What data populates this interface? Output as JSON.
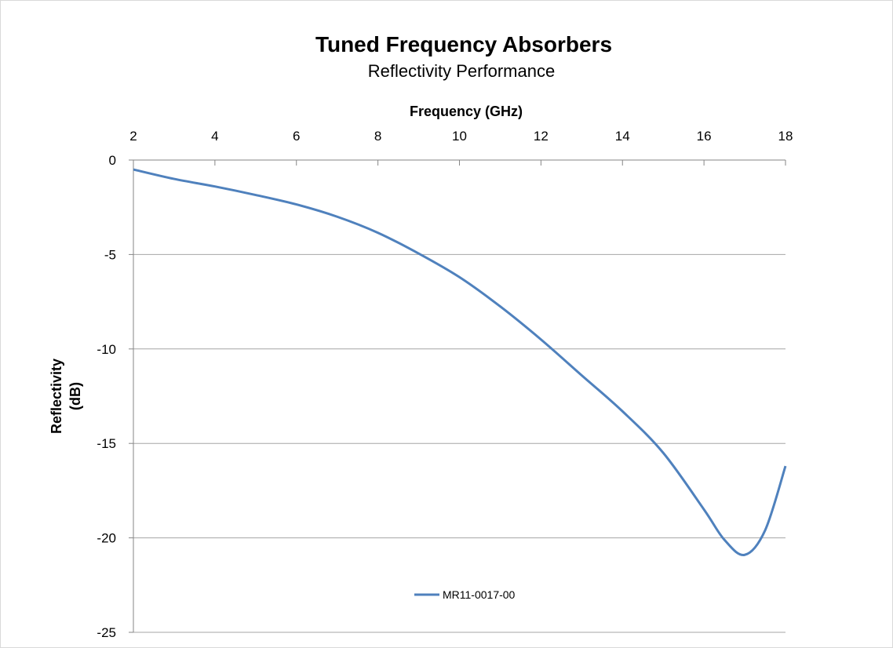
{
  "chart_data": {
    "type": "line",
    "title": "Tuned Frequency Absorbers",
    "subtitle": "Reflectivity Performance",
    "xlabel": "Frequency (GHz)",
    "ylabel_lines": [
      "Reflectivity",
      "(dB)"
    ],
    "xlim": [
      2,
      18
    ],
    "ylim": [
      -25,
      0
    ],
    "x_ticks": [
      2,
      4,
      6,
      8,
      10,
      12,
      14,
      16,
      18
    ],
    "y_ticks": [
      0,
      -5,
      -10,
      -15,
      -20,
      -25
    ],
    "x_axis_position": "top",
    "grid": "horizontal",
    "legend_position": "bottom-center",
    "series": [
      {
        "name": "MR11-0017-00",
        "color": "#4f81bd",
        "points": [
          [
            2,
            -0.5
          ],
          [
            3,
            -1.0
          ],
          [
            4,
            -1.4
          ],
          [
            5,
            -1.85
          ],
          [
            6,
            -2.35
          ],
          [
            7,
            -3.0
          ],
          [
            8,
            -3.85
          ],
          [
            9,
            -4.95
          ],
          [
            10,
            -6.2
          ],
          [
            11,
            -7.75
          ],
          [
            12,
            -9.5
          ],
          [
            13,
            -11.4
          ],
          [
            14,
            -13.3
          ],
          [
            15,
            -15.5
          ],
          [
            16,
            -18.5
          ],
          [
            16.5,
            -20.1
          ],
          [
            17,
            -20.9
          ],
          [
            17.5,
            -19.6
          ],
          [
            18,
            -16.2
          ]
        ]
      }
    ]
  }
}
